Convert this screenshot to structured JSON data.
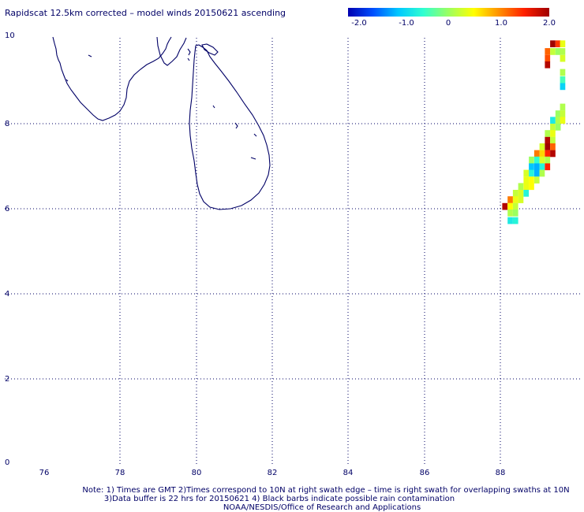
{
  "title": "Rapidscat 12.5km corrected – model winds 20150621 ascending",
  "colorbar": {
    "labels": [
      "-2.0",
      "-1.0",
      "0",
      "1.0",
      "2.0"
    ],
    "stops": [
      "#0000b0",
      "#0050ff",
      "#00c8ff",
      "#30ffd0",
      "#9cff60",
      "#ffff00",
      "#ff9000",
      "#ff2000",
      "#a00000"
    ]
  },
  "x_axis": {
    "ticks": [
      "76",
      "78",
      "80",
      "82",
      "84",
      "86",
      "88"
    ]
  },
  "y_axis": {
    "ticks": [
      "0",
      "2",
      "4",
      "6",
      "8",
      "10"
    ]
  },
  "notes": [
    "Note: 1) Times are GMT 2)Times correspond to 10N at right swath edge – time is right swath for overlapping swaths at 10N",
    "3)Data buffer is 22 hrs for 20150621 4) Black barbs indicate possible rain contamination",
    "NOAA/NESDIS/Office of Research and Applications"
  ],
  "map_data": {
    "lon_range": [
      75.0,
      89.75
    ],
    "lat_range": [
      0,
      10
    ],
    "swath_cells": [
      {
        "lon": 89.38,
        "lat": 9.84,
        "v": 2.0
      },
      {
        "lon": 89.52,
        "lat": 9.84,
        "v": 1.4
      },
      {
        "lon": 89.64,
        "lat": 9.84,
        "v": 0.4
      },
      {
        "lon": 89.24,
        "lat": 9.66,
        "v": 1.2
      },
      {
        "lon": 89.38,
        "lat": 9.66,
        "v": 0.2
      },
      {
        "lon": 89.52,
        "lat": 9.66,
        "v": 0.0
      },
      {
        "lon": 89.64,
        "lat": 9.66,
        "v": 0.1
      },
      {
        "lon": 89.24,
        "lat": 9.5,
        "v": 1.3
      },
      {
        "lon": 89.64,
        "lat": 9.5,
        "v": 0.3
      },
      {
        "lon": 89.24,
        "lat": 9.35,
        "v": 1.9
      },
      {
        "lon": 89.64,
        "lat": 9.17,
        "v": 0.1
      },
      {
        "lon": 89.64,
        "lat": 9.0,
        "v": -0.4
      },
      {
        "lon": 89.64,
        "lat": 8.84,
        "v": -0.9
      },
      {
        "lon": 89.64,
        "lat": 8.36,
        "v": 0.1
      },
      {
        "lon": 89.52,
        "lat": 8.2,
        "v": 0.0
      },
      {
        "lon": 89.64,
        "lat": 8.2,
        "v": 0.2
      },
      {
        "lon": 89.38,
        "lat": 8.05,
        "v": -0.7
      },
      {
        "lon": 89.52,
        "lat": 8.05,
        "v": 0.1
      },
      {
        "lon": 89.64,
        "lat": 8.05,
        "v": 0.4
      },
      {
        "lon": 89.38,
        "lat": 7.89,
        "v": 0.2
      },
      {
        "lon": 89.52,
        "lat": 7.89,
        "v": 0.0
      },
      {
        "lon": 89.24,
        "lat": 7.74,
        "v": 0.1
      },
      {
        "lon": 89.38,
        "lat": 7.74,
        "v": 0.4
      },
      {
        "lon": 89.24,
        "lat": 7.58,
        "v": 1.9
      },
      {
        "lon": 89.38,
        "lat": 7.58,
        "v": 0.2
      },
      {
        "lon": 89.1,
        "lat": 7.43,
        "v": 0.3
      },
      {
        "lon": 89.24,
        "lat": 7.43,
        "v": 2.0
      },
      {
        "lon": 89.38,
        "lat": 7.43,
        "v": 1.2
      },
      {
        "lon": 88.96,
        "lat": 7.27,
        "v": 1.1
      },
      {
        "lon": 89.1,
        "lat": 7.27,
        "v": 0.7
      },
      {
        "lon": 89.24,
        "lat": 7.27,
        "v": 1.5
      },
      {
        "lon": 89.38,
        "lat": 7.27,
        "v": 1.9
      },
      {
        "lon": 88.82,
        "lat": 7.12,
        "v": 0.0
      },
      {
        "lon": 88.96,
        "lat": 7.12,
        "v": -0.5
      },
      {
        "lon": 89.1,
        "lat": 7.12,
        "v": 0.3
      },
      {
        "lon": 89.24,
        "lat": 7.12,
        "v": 0.1
      },
      {
        "lon": 88.82,
        "lat": 6.96,
        "v": -1.0
      },
      {
        "lon": 88.96,
        "lat": 6.96,
        "v": -1.1
      },
      {
        "lon": 89.1,
        "lat": 6.96,
        "v": -0.6
      },
      {
        "lon": 89.24,
        "lat": 6.96,
        "v": 1.5
      },
      {
        "lon": 88.68,
        "lat": 6.81,
        "v": 0.3
      },
      {
        "lon": 88.82,
        "lat": 6.81,
        "v": -0.6
      },
      {
        "lon": 88.96,
        "lat": 6.81,
        "v": -1.1
      },
      {
        "lon": 89.1,
        "lat": 6.81,
        "v": 0.1
      },
      {
        "lon": 88.68,
        "lat": 6.65,
        "v": 0.4
      },
      {
        "lon": 88.82,
        "lat": 6.65,
        "v": 0.5
      },
      {
        "lon": 88.96,
        "lat": 6.65,
        "v": 0.2
      },
      {
        "lon": 88.54,
        "lat": 6.5,
        "v": 0.1
      },
      {
        "lon": 88.68,
        "lat": 6.5,
        "v": 0.4
      },
      {
        "lon": 88.82,
        "lat": 6.5,
        "v": 0.5
      },
      {
        "lon": 88.4,
        "lat": 6.34,
        "v": 0.2
      },
      {
        "lon": 88.54,
        "lat": 6.34,
        "v": 0.3
      },
      {
        "lon": 88.68,
        "lat": 6.34,
        "v": -0.6
      },
      {
        "lon": 88.26,
        "lat": 6.19,
        "v": 1.1
      },
      {
        "lon": 88.4,
        "lat": 6.19,
        "v": 0.4
      },
      {
        "lon": 88.54,
        "lat": 6.19,
        "v": 0.3
      },
      {
        "lon": 88.12,
        "lat": 6.03,
        "v": 1.9
      },
      {
        "lon": 88.26,
        "lat": 6.03,
        "v": 0.5
      },
      {
        "lon": 88.4,
        "lat": 6.03,
        "v": 0.2
      },
      {
        "lon": 88.26,
        "lat": 5.88,
        "v": 0.1
      },
      {
        "lon": 88.4,
        "lat": 5.88,
        "v": 0.0
      },
      {
        "lon": 88.26,
        "lat": 5.7,
        "v": -0.7
      },
      {
        "lon": 88.4,
        "lat": 5.7,
        "v": -0.6
      }
    ]
  }
}
